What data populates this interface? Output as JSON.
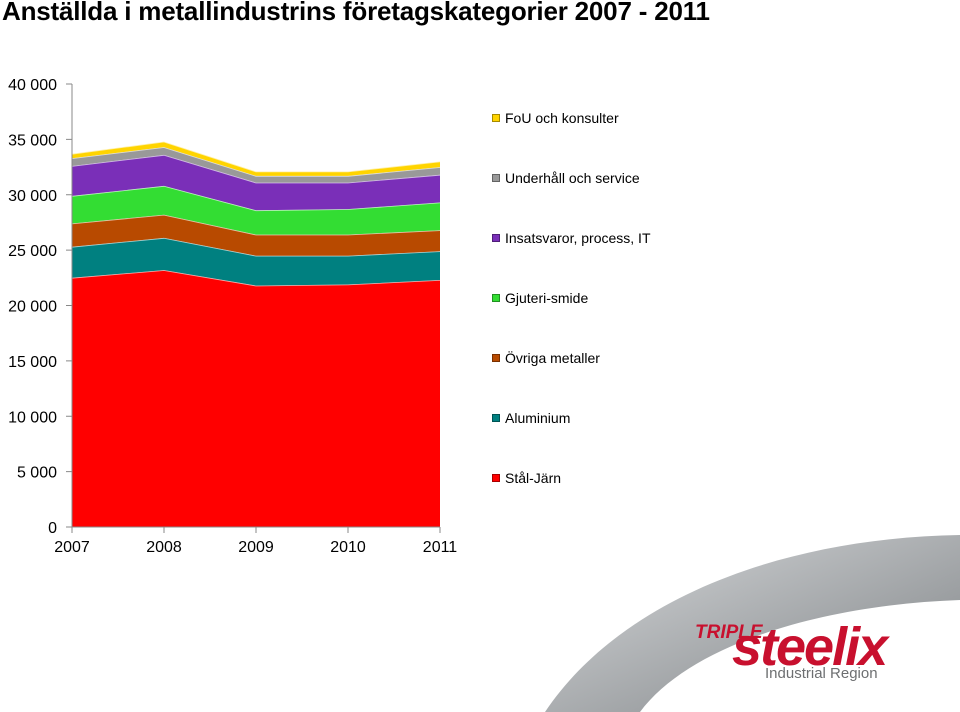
{
  "title": "Anställda i metallindustrins företagskategorier 2007 - 2011",
  "logo": {
    "word_triple": "TRIPLE",
    "word_steelix": "steelix",
    "subtitle": "Industrial Region"
  },
  "chart_data": {
    "type": "area",
    "stacked": true,
    "title": "Anställda i metallindustrins företagskategorier 2007 - 2011",
    "xlabel": "",
    "ylabel": "",
    "categories": [
      "2007",
      "2008",
      "2009",
      "2010",
      "2011"
    ],
    "ylim": [
      0,
      40000
    ],
    "yticks": [
      0,
      5000,
      10000,
      15000,
      20000,
      25000,
      30000,
      35000,
      40000
    ],
    "ytick_labels": [
      "0",
      "5 000",
      "10 000",
      "15 000",
      "20 000",
      "25 000",
      "30 000",
      "35 000",
      "40 000"
    ],
    "grid": false,
    "legend_position": "right",
    "series": [
      {
        "name": "Stål-Järn",
        "color": "#ff0000",
        "values": [
          22500,
          23200,
          21800,
          21900,
          22300
        ]
      },
      {
        "name": "Aluminium",
        "color": "#008080",
        "values": [
          2800,
          2900,
          2700,
          2600,
          2600
        ]
      },
      {
        "name": "Övriga metaller",
        "color": "#b84a00",
        "values": [
          2100,
          2100,
          1900,
          1900,
          1900
        ]
      },
      {
        "name": "Gjuteri-smide",
        "color": "#33dd33",
        "values": [
          2500,
          2600,
          2200,
          2300,
          2500
        ]
      },
      {
        "name": "Insatsvaror, process, IT",
        "color": "#7a2fb8",
        "values": [
          2700,
          2800,
          2500,
          2400,
          2500
        ]
      },
      {
        "name": "Underhåll och service",
        "color": "#999999",
        "values": [
          700,
          700,
          600,
          600,
          700
        ]
      },
      {
        "name": "FoU och konsulter",
        "color": "#ffd400",
        "values": [
          400,
          500,
          400,
          400,
          500
        ]
      }
    ]
  }
}
